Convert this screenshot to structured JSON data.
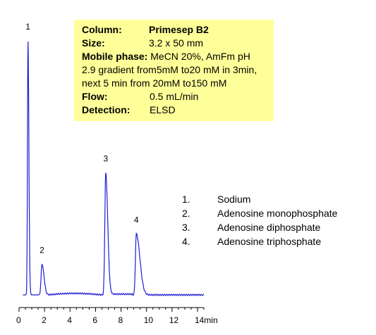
{
  "info": {
    "column_label": "Column:",
    "column_value": "Primesep B2",
    "size_label": "Size:",
    "size_value": "3.2 x 50 mm",
    "mobile_label": "Mobile phase:",
    "mobile_value": "MeCN 20%, AmFm pH",
    "mobile_line2": "2.9 gradient from5mM to20 mM in 3min,",
    "mobile_line3": "next 5 min from 20mM to150 mM",
    "flow_label": "Flow:",
    "flow_value": "0.5 mL/min",
    "detection_label": "Detection:",
    "detection_value": "ELSD"
  },
  "legend": [
    {
      "num": "1.",
      "name": "Sodium"
    },
    {
      "num": "2.",
      "name": "Adenosine monophosphate"
    },
    {
      "num": "3.",
      "name": "Adenosine diphosphate"
    },
    {
      "num": "4.",
      "name": "Adenosine triphosphate"
    }
  ],
  "colors": {
    "trace": "#1f1fd1",
    "axis": "#000000",
    "info_bg": "#ffff99"
  },
  "chart_data": {
    "type": "line",
    "x_unit": "min",
    "xlim": [
      0,
      14.5
    ],
    "x_ticks": [
      "0",
      "2",
      "4",
      "6",
      "8",
      "10",
      "12",
      "14min"
    ],
    "x_tick_values": [
      0,
      2,
      4,
      6,
      8,
      10,
      12,
      14
    ],
    "peaks": [
      {
        "label": "1",
        "rt": 0.7,
        "height": 100
      },
      {
        "label": "2",
        "rt": 1.8,
        "height": 12
      },
      {
        "label": "3",
        "rt": 6.8,
        "height": 48
      },
      {
        "label": "4",
        "rt": 9.2,
        "height": 24
      }
    ]
  }
}
